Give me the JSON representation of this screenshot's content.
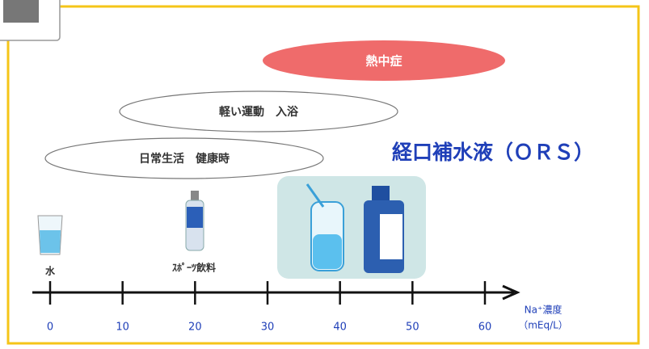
{
  "ellipses": [
    {
      "label": "熱中症"
    },
    {
      "label": "軽い運動　入浴"
    },
    {
      "label": "日常生活　健康時"
    }
  ],
  "title": "経口補水液（ＯＲＳ）",
  "items": [
    {
      "label": "水"
    },
    {
      "label": "ｽﾎﾟｰﾂ飲料"
    }
  ],
  "axis": {
    "ticks": [
      0,
      10,
      20,
      30,
      40,
      50,
      60
    ],
    "label": "Na⁺濃度",
    "unit": "（mEq/L）"
  }
}
